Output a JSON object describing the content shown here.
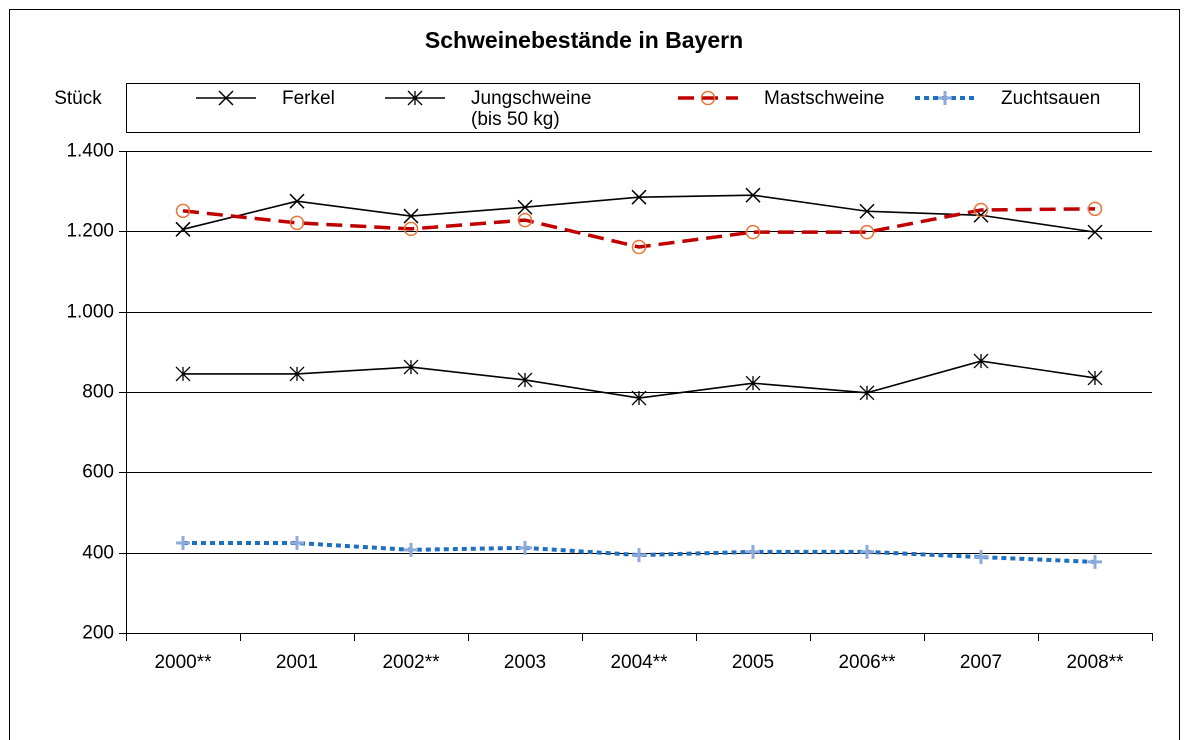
{
  "chart_data": {
    "type": "line",
    "title": "Schweinebestände in Bayern",
    "y_label": "Stück",
    "categories": [
      "2000**",
      "2001",
      "2002**",
      "2003",
      "2004**",
      "2005",
      "2006**",
      "2007",
      "2008**"
    ],
    "series": [
      {
        "name": "Ferkel",
        "color": "#000000",
        "marker": "x",
        "marker_color": "#000000",
        "dash": "solid",
        "values": [
          1205,
          1275,
          1238,
          1260,
          1285,
          1290,
          1250,
          1240,
          1198
        ]
      },
      {
        "name": "Jungschweine\n(bis 50 kg)",
        "color": "#000000",
        "marker": "asterisk",
        "marker_color": "#000000",
        "dash": "solid",
        "values": [
          845,
          845,
          862,
          830,
          785,
          822,
          798,
          877,
          835
        ]
      },
      {
        "name": "Mastschweine",
        "color": "#c00000",
        "marker": "circle",
        "marker_color": "#e3743a",
        "dash": "dashed",
        "values": [
          1251,
          1221,
          1206,
          1228,
          1161,
          1198,
          1198,
          1253,
          1256
        ]
      },
      {
        "name": "Zuchtsauen",
        "color": "#1f6fbf",
        "marker": "plus",
        "marker_color": "#8eaadb",
        "dash": "dotted",
        "values": [
          424,
          424,
          407,
          412,
          394,
          402,
          402,
          389,
          377
        ]
      }
    ],
    "ylim": [
      200,
      1400
    ],
    "yticks": [
      200,
      400,
      600,
      800,
      {
        "value": 1000,
        "label": "1.000"
      },
      {
        "value": 1200,
        "label": "1.200"
      },
      {
        "value": 1400,
        "label": "1.400"
      }
    ],
    "grid": true
  }
}
